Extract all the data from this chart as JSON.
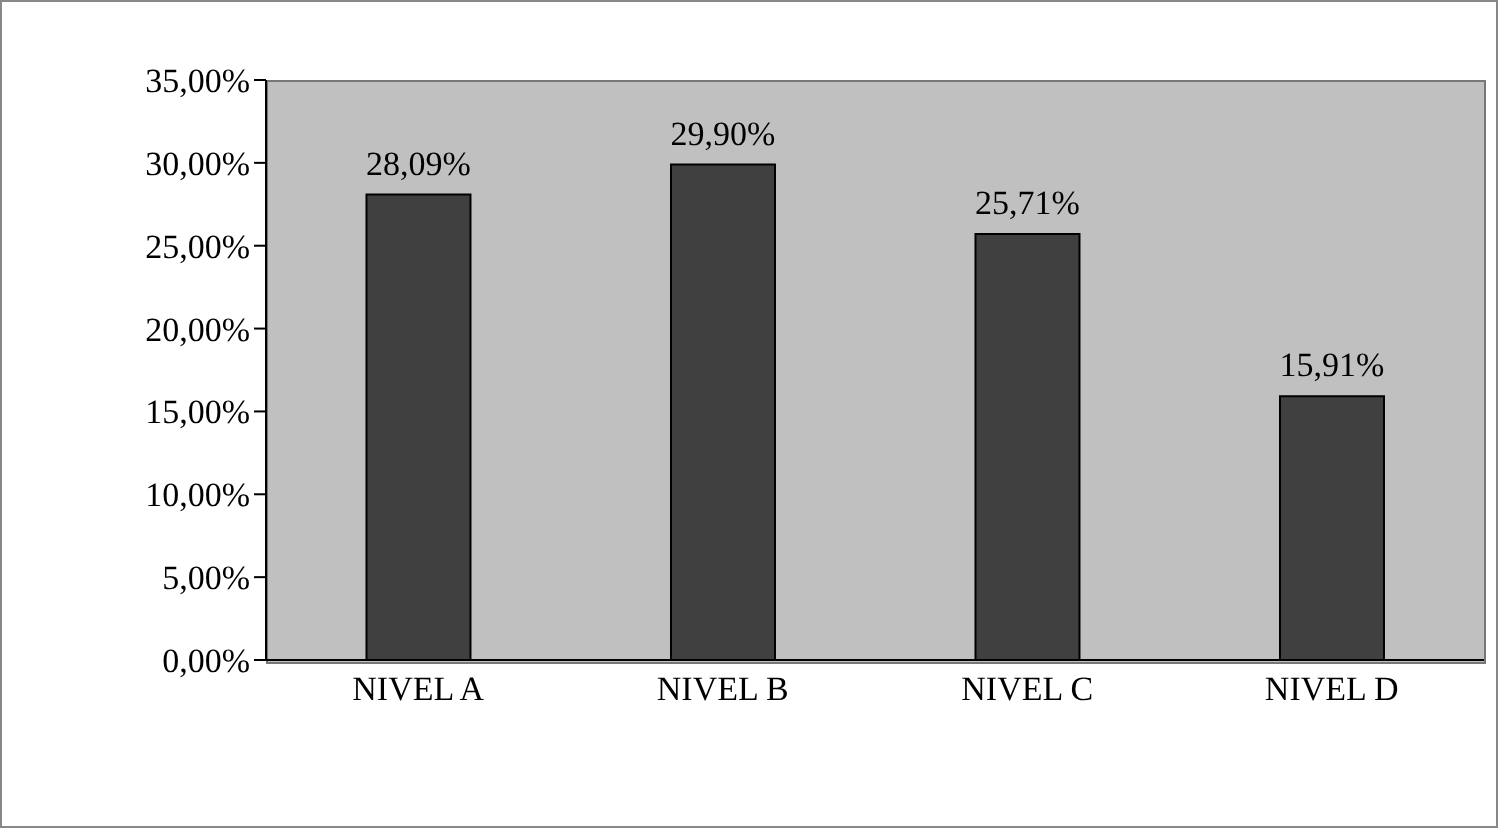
{
  "chart_data": {
    "type": "bar",
    "categories": [
      "NIVEL A",
      "NIVEL B",
      "NIVEL C",
      "NIVEL D"
    ],
    "values": [
      28.09,
      29.9,
      25.71,
      15.91
    ],
    "color": "#404040",
    "value_labels": [
      "28,09%",
      "29,90%",
      "25,71%",
      "15,91%"
    ],
    "ylim": [
      0,
      35
    ],
    "yticks": [
      {
        "value": 0,
        "label": "0,00%"
      },
      {
        "value": 5,
        "label": "5,00%"
      },
      {
        "value": 10,
        "label": "10,00%"
      },
      {
        "value": 15,
        "label": "15,00%"
      },
      {
        "value": 20,
        "label": "20,00%"
      },
      {
        "value": 25,
        "label": "25,00%"
      },
      {
        "value": 30,
        "label": "30,00%"
      },
      {
        "value": 35,
        "label": "35,00%"
      }
    ],
    "grid": false
  }
}
